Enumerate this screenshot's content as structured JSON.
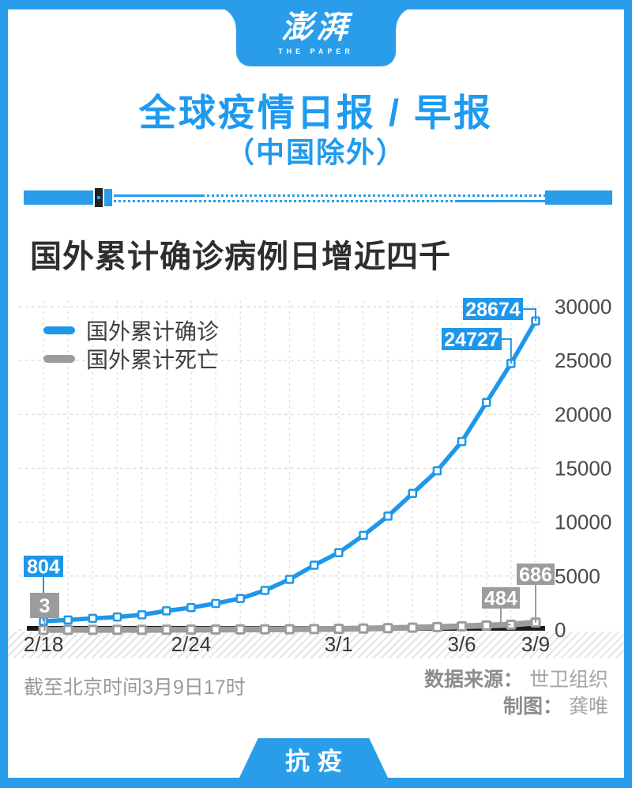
{
  "colors": {
    "accent_blue": "#2A9DEA",
    "title_blue": "#1E9AEF",
    "confirmed_line": "#1E97EA",
    "deaths_line": "#9C9C9C",
    "axis_black": "#1A1A1A",
    "grid_gray": "#D9D9D9",
    "text_dark": "#2E2E2E",
    "text_gray": "#9A9A9A"
  },
  "header": {
    "logo_zh": "澎湃",
    "logo_en": "THE PAPER",
    "title": "全球疫情日报 / 早报",
    "subtitle": "（中国除外）"
  },
  "section": {
    "title": "国外累计确诊病例日增近四千"
  },
  "legend": [
    {
      "label": "国外累计确诊",
      "color": "#1E97EA"
    },
    {
      "label": "国外累计死亡",
      "color": "#9C9C9C"
    }
  ],
  "chart_data": {
    "type": "line",
    "title": "国外累计确诊病例日增近四千",
    "x": [
      "2/18",
      "2/19",
      "2/20",
      "2/21",
      "2/22",
      "2/23",
      "2/24",
      "2/25",
      "2/26",
      "2/27",
      "2/28",
      "2/29",
      "3/1",
      "3/2",
      "3/3",
      "3/4",
      "3/5",
      "3/6",
      "3/7",
      "3/8",
      "3/9"
    ],
    "x_tick_labels": [
      "2/18",
      "2/24",
      "3/1",
      "3/6",
      "3/9"
    ],
    "x_tick_indices": [
      0,
      6,
      12,
      17,
      20
    ],
    "y_ticks": [
      0,
      5000,
      10000,
      15000,
      20000,
      25000,
      30000
    ],
    "ylim": [
      0,
      30000
    ],
    "grid": "dashed",
    "legend_position": "top-left",
    "series": [
      {
        "name": "国外累计确诊",
        "color": "#1E97EA",
        "values": [
          804,
          924,
          1073,
          1200,
          1402,
          1769,
          2069,
          2459,
          2918,
          3664,
          4691,
          6009,
          7169,
          8774,
          10566,
          12668,
          14768,
          17481,
          21110,
          24727,
          28674
        ]
      },
      {
        "name": "国外累计死亡",
        "color": "#9C9C9C",
        "values": [
          3,
          8,
          8,
          11,
          13,
          18,
          23,
          35,
          44,
          57,
          67,
          86,
          104,
          128,
          166,
          214,
          267,
          335,
          413,
          484,
          686
        ]
      }
    ],
    "annotations": [
      {
        "series": 0,
        "index": 0,
        "text": "804"
      },
      {
        "series": 0,
        "index": 19,
        "text": "24727"
      },
      {
        "series": 0,
        "index": 20,
        "text": "28674"
      },
      {
        "series": 1,
        "index": 0,
        "text": "3"
      },
      {
        "series": 1,
        "index": 19,
        "text": "484"
      },
      {
        "series": 1,
        "index": 20,
        "text": "686"
      }
    ]
  },
  "footer": {
    "note": "截至北京时间3月9日17时",
    "source_label": "数据来源：",
    "source_value": "世卫组织",
    "credit_label": "制图：",
    "credit_value": "龚唯"
  },
  "bottom": {
    "tag": "抗疫"
  }
}
